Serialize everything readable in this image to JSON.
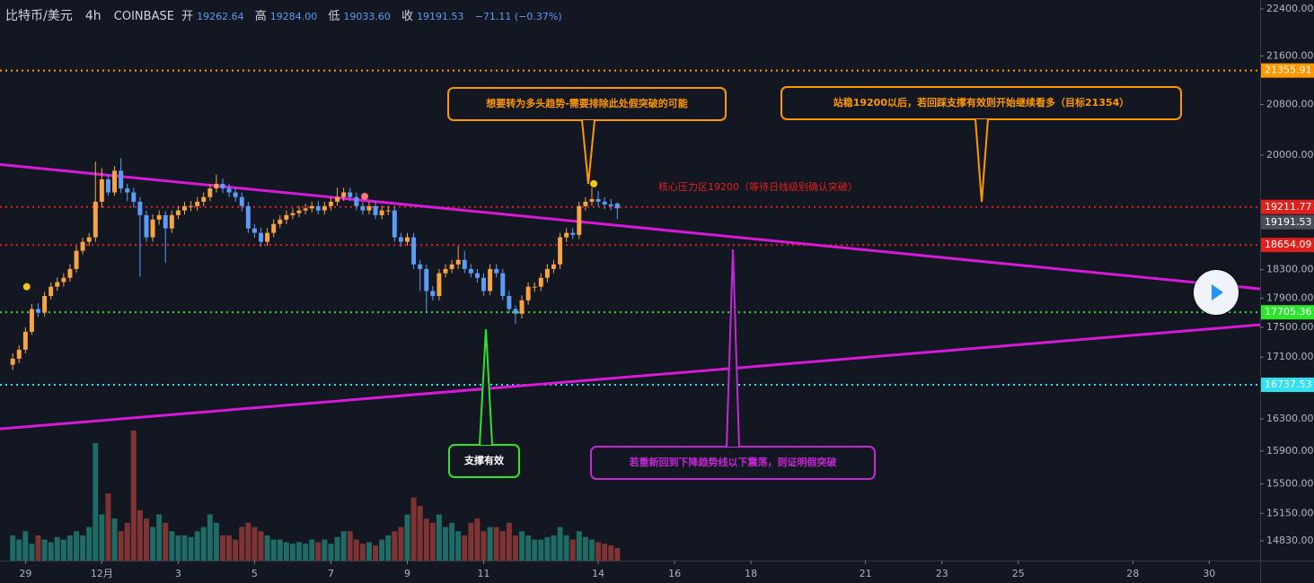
{
  "chart_data": {
    "type": "candlestick",
    "header": {
      "symbol": "比特币/美元",
      "interval": "4h",
      "exchange": "COINBASE",
      "fields": [
        {
          "label": "开",
          "value": "19262.64"
        },
        {
          "label": "高",
          "value": "19284.00"
        },
        {
          "label": "低",
          "value": "19033.60"
        },
        {
          "label": "收",
          "value": "19191.53"
        }
      ],
      "change": "−71.11 (−0.37%)"
    },
    "open": [
      17000,
      17080,
      17200,
      17440,
      17750,
      17700,
      17930,
      18060,
      18125,
      18185,
      18310,
      18570,
      18700,
      18765,
      19290,
      19627,
      19430,
      19760,
      19490,
      19430,
      19290,
      19090,
      18765,
      19025,
      19090,
      18895,
      19090,
      19160,
      19225,
      19225,
      19290,
      19360,
      19490,
      19560,
      19490,
      19430,
      19360,
      19225,
      18895,
      18830,
      18700,
      18830,
      18960,
      19025,
      19090,
      19120,
      19160,
      19190,
      19225,
      19160,
      19225,
      19290,
      19360,
      19430,
      19360,
      19225,
      19160,
      19225,
      19090,
      19160,
      19160,
      18765,
      18700,
      18765,
      18375,
      18310,
      18000,
      17930,
      18250,
      18310,
      18375,
      18440,
      18310,
      18250,
      18185,
      18000,
      18310,
      18250,
      17930,
      17750,
      17685,
      17870,
      18060,
      18060,
      18185,
      18310,
      18375,
      18765,
      18830,
      18800,
      19225,
      19290,
      19330,
      19290,
      19250,
      19262.64
    ],
    "high": [
      17150,
      17260,
      17500,
      17820,
      17830,
      17990,
      18120,
      18190,
      18250,
      18380,
      18640,
      18760,
      18830,
      19900,
      19800,
      19700,
      19830,
      19950,
      19560,
      19500,
      19360,
      19160,
      19100,
      19160,
      19150,
      19160,
      19230,
      19290,
      19300,
      19360,
      19430,
      19560,
      19700,
      19640,
      19560,
      19500,
      19430,
      19290,
      18960,
      18900,
      18900,
      19030,
      19090,
      19160,
      19190,
      19230,
      19260,
      19290,
      19300,
      19290,
      19360,
      19500,
      19500,
      19500,
      19430,
      19290,
      19290,
      19290,
      19230,
      19230,
      19230,
      18830,
      18830,
      18830,
      18440,
      18370,
      18070,
      18310,
      18380,
      18440,
      18640,
      18570,
      18380,
      18310,
      18250,
      18380,
      18380,
      18310,
      18000,
      17800,
      17940,
      18120,
      18120,
      18250,
      18380,
      18440,
      18830,
      18900,
      18900,
      19290,
      19360,
      19500,
      19450,
      19360,
      19330,
      19284
    ],
    "low": [
      16930,
      17020,
      17150,
      17400,
      17640,
      17650,
      17880,
      18000,
      18060,
      18130,
      18260,
      18520,
      18640,
      18700,
      19200,
      19380,
      19380,
      19420,
      19300,
      19200,
      18200,
      18700,
      18700,
      18950,
      18400,
      18830,
      19030,
      19100,
      19150,
      19160,
      19220,
      19300,
      19430,
      19420,
      19360,
      19290,
      19150,
      18830,
      18760,
      18630,
      18640,
      18770,
      18900,
      18960,
      19030,
      19060,
      19100,
      19130,
      19100,
      19100,
      19160,
      19230,
      19300,
      19300,
      19160,
      19100,
      19100,
      19030,
      19030,
      19090,
      18700,
      18630,
      18640,
      18310,
      18000,
      17700,
      17870,
      17870,
      18190,
      18250,
      18310,
      18250,
      18190,
      18120,
      17930,
      17940,
      18190,
      17870,
      17690,
      17550,
      17620,
      17810,
      17990,
      18000,
      18120,
      18250,
      18310,
      18700,
      18740,
      18740,
      19160,
      19230,
      19220,
      19180,
      19160,
      19033.6
    ],
    "close": [
      17080,
      17200,
      17440,
      17750,
      17700,
      17930,
      18060,
      18125,
      18185,
      18310,
      18570,
      18700,
      18765,
      19290,
      19627,
      19430,
      19760,
      19490,
      19430,
      19290,
      19090,
      18765,
      19025,
      19090,
      18895,
      19090,
      19160,
      19225,
      19225,
      19290,
      19360,
      19490,
      19560,
      19490,
      19430,
      19360,
      19225,
      18895,
      18830,
      18700,
      18830,
      18960,
      19025,
      19090,
      19120,
      19160,
      19190,
      19225,
      19160,
      19225,
      19290,
      19360,
      19430,
      19360,
      19225,
      19160,
      19225,
      19090,
      19160,
      19160,
      18765,
      18700,
      18765,
      18375,
      18310,
      18000,
      17930,
      18250,
      18310,
      18375,
      18440,
      18310,
      18250,
      18185,
      18000,
      18310,
      18250,
      17930,
      17750,
      17685,
      17870,
      18060,
      18060,
      18185,
      18310,
      18375,
      18765,
      18830,
      18800,
      19225,
      19290,
      19330,
      19290,
      19250,
      19225,
      19191.53
    ],
    "volume": [
      30,
      25,
      35,
      20,
      30,
      25,
      22,
      28,
      25,
      30,
      35,
      30,
      40,
      140,
      55,
      80,
      50,
      35,
      45,
      155,
      60,
      50,
      40,
      55,
      45,
      35,
      30,
      30,
      28,
      35,
      40,
      55,
      45,
      30,
      30,
      25,
      40,
      45,
      40,
      35,
      30,
      25,
      25,
      22,
      20,
      22,
      20,
      25,
      22,
      25,
      20,
      28,
      35,
      35,
      25,
      20,
      22,
      18,
      25,
      30,
      35,
      40,
      55,
      75,
      65,
      50,
      45,
      55,
      40,
      45,
      35,
      30,
      45,
      50,
      35,
      40,
      40,
      35,
      45,
      30,
      35,
      30,
      25,
      25,
      28,
      30,
      40,
      30,
      25,
      35,
      28,
      25,
      22,
      20,
      18,
      15
    ],
    "up_color": "#f7a445",
    "down_color": "#5b9cf6",
    "volume_up_color": "#1f6b66",
    "volume_down_color": "#7f3434",
    "log_scale": true,
    "xlim": [
      -2,
      196
    ],
    "xticks": [
      {
        "value": 2,
        "label": "29"
      },
      {
        "value": 14,
        "label": "12月"
      },
      {
        "value": 26,
        "label": "3"
      },
      {
        "value": 38,
        "label": "5"
      },
      {
        "value": 50,
        "label": "7"
      },
      {
        "value": 62,
        "label": "9"
      },
      {
        "value": 74,
        "label": "11"
      },
      {
        "value": 92,
        "label": "14"
      },
      {
        "value": 104,
        "label": "16"
      },
      {
        "value": 116,
        "label": "18"
      },
      {
        "value": 134,
        "label": "21"
      },
      {
        "value": 146,
        "label": "23"
      },
      {
        "value": 158,
        "label": "25"
      },
      {
        "value": 176,
        "label": "28"
      },
      {
        "value": 188,
        "label": "30"
      }
    ],
    "ylim": [
      14605,
      22556
    ],
    "yticks": [
      {
        "value": 22400,
        "label": "22400.00"
      },
      {
        "value": 21600,
        "label": "21600.00"
      },
      {
        "value": 20800,
        "label": "20800.00"
      },
      {
        "value": 20000,
        "label": "20000.00"
      },
      {
        "value": 18300,
        "label": "18300.00"
      },
      {
        "value": 17900,
        "label": "17900.00"
      },
      {
        "value": 17500,
        "label": "17500.00"
      },
      {
        "value": 17100,
        "label": "17100.00"
      },
      {
        "value": 16300,
        "label": "16300.00"
      },
      {
        "value": 15900,
        "label": "15900.00"
      },
      {
        "value": 15500,
        "label": "15500.00"
      },
      {
        "value": 15150,
        "label": "15150.00"
      },
      {
        "value": 14830,
        "label": "14830.00"
      }
    ],
    "levels": [
      {
        "value": 21355.91,
        "color": "#ff9800"
      },
      {
        "value": 19211.77,
        "color": "#e0201c"
      },
      {
        "value": 18654.09,
        "color": "#e0201c"
      },
      {
        "value": 17705.36,
        "color": "#2ee52e"
      },
      {
        "value": 16737.53,
        "color": "#32e0f0"
      }
    ],
    "last_color": "#4a4e59",
    "trendlines": [
      {
        "color": "#d61ad6",
        "x": [
          -2,
          196
        ],
        "values": [
          19855,
          18030
        ]
      },
      {
        "color": "#d61ad6",
        "x": [
          -2,
          196
        ],
        "values": [
          16175,
          17535
        ]
      }
    ],
    "markers": [
      {
        "x": 2.2,
        "value": 18060,
        "color": "#f5c518"
      },
      {
        "x": 55.3,
        "value": 19370,
        "color": "#f07a7a"
      },
      {
        "x": 91.3,
        "value": 19560,
        "color": "#f5c518"
      }
    ],
    "callouts": [
      {
        "text": "想要转为多头趋势-需要排除此处假突破的可能",
        "color": "#ff9800"
      },
      {
        "text": "站稳19200以后，若回踩支撑有效则开始继续看多（目标21354）",
        "color": "#ff9800"
      },
      {
        "text": "核心压力区19200（等待日线级别确认突破）",
        "color": "#e0201c"
      },
      {
        "text": "支撑有效",
        "color": "#2ee52e"
      },
      {
        "text": "若重新回到下降趋势线以下震荡，则证明假突破",
        "color": "#c427d4"
      }
    ]
  }
}
